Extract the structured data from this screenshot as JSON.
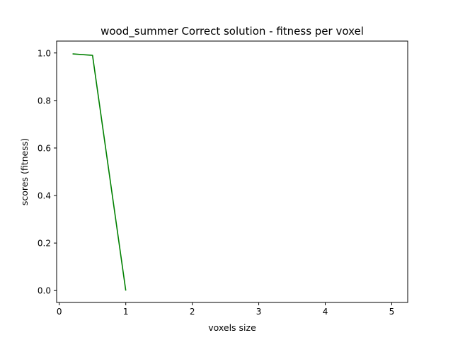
{
  "chart_data": {
    "type": "line",
    "title": "wood_summer Correct solution - fitness per voxel",
    "xlabel": "voxels size",
    "ylabel": "scores (fitness)",
    "xlim": [
      -0.04,
      5.24
    ],
    "ylim": [
      -0.05,
      1.05
    ],
    "xticks": [
      0,
      1,
      2,
      3,
      4,
      5
    ],
    "xtick_labels": [
      "0",
      "1",
      "2",
      "3",
      "4",
      "5"
    ],
    "yticks": [
      0.0,
      0.2,
      0.4,
      0.6,
      0.8,
      1.0
    ],
    "ytick_labels": [
      "0.0",
      "0.2",
      "0.4",
      "0.6",
      "0.8",
      "1.0"
    ],
    "grid": false,
    "series": [
      {
        "color": "#008000",
        "x": [
          0.2,
          0.5,
          1.0
        ],
        "y": [
          0.996,
          0.99,
          0.0
        ]
      }
    ]
  }
}
